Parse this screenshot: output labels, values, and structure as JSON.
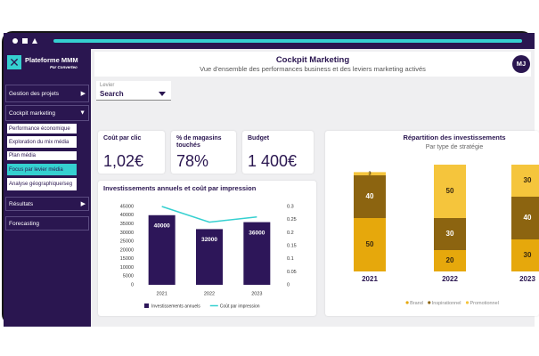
{
  "sidebar": {
    "brand": "Plateforme MMM",
    "tagline": "Par Converteo",
    "menu": [
      "Gestion des projets",
      "Cockpit marketing",
      "Résultats",
      "Forecasting"
    ],
    "submenu": [
      {
        "label": "Performance économique"
      },
      {
        "label": "Exploration du mix média"
      },
      {
        "label": "Plan média"
      },
      {
        "label": "Focus par levier média",
        "active": true
      },
      {
        "label": "Analyse géographique/seg"
      }
    ]
  },
  "header": {
    "title": "Cockpit Marketing",
    "subtitle": "Vue d'ensemble des performances business et des leviers marketing activés",
    "avatar": "MJ"
  },
  "filter": {
    "label": "Levier",
    "value": "Search"
  },
  "kpis": [
    {
      "label": "Coût par clic",
      "value": "1,02€"
    },
    {
      "label": "% de magasins touchés",
      "value": "78%"
    },
    {
      "label": "Budget",
      "value": "1 400€"
    }
  ],
  "chart_data": [
    {
      "type": "combo",
      "title": "Investissements annuels et coût par impression",
      "categories": [
        "2021",
        "2022",
        "2023"
      ],
      "series": [
        {
          "name": "Investissements annuels",
          "type": "bar",
          "color": "#2d1659",
          "values": [
            40000,
            32000,
            36000
          ]
        },
        {
          "name": "Coût par impression",
          "type": "line",
          "axis": "y2",
          "color": "#35d0d0",
          "values": [
            0.3,
            0.24,
            0.26
          ]
        }
      ],
      "ylim": [
        0,
        45000
      ],
      "yticks": [
        0,
        5000,
        10000,
        15000,
        20000,
        25000,
        30000,
        35000,
        40000,
        45000
      ],
      "y2lim": [
        0,
        0.3
      ],
      "y2ticks": [
        0,
        0.05,
        0.1,
        0.15,
        0.2,
        0.25,
        0.3
      ]
    },
    {
      "type": "bar",
      "stacked": true,
      "title": "Répartition des investissements",
      "subtitle": "Par type de stratégie",
      "categories": [
        "2021",
        "2022",
        "2023"
      ],
      "series": [
        {
          "name": "Brand",
          "color": "#e6a80c",
          "values": [
            50,
            20,
            30
          ]
        },
        {
          "name": "Inspirationnel",
          "color": "#8c6410",
          "values": [
            40,
            30,
            40
          ]
        },
        {
          "name": "Promotionnel",
          "color": "#f5c53c",
          "values": [
            3,
            50,
            30
          ]
        }
      ]
    }
  ]
}
